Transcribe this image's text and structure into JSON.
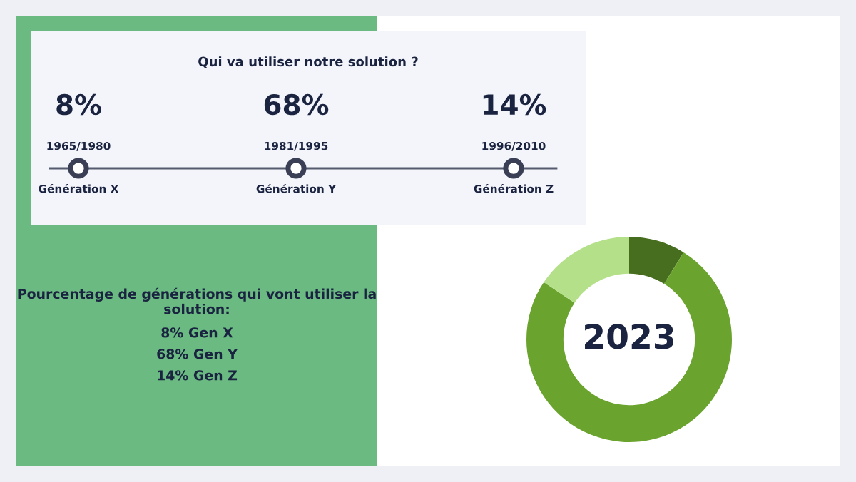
{
  "chart_data": [
    {
      "type": "other",
      "title": "Qui va utiliser notre solution ?",
      "categories": [
        "Génération X",
        "Génération Y",
        "Génération Z"
      ],
      "value_labels": [
        "8%",
        "68%",
        "14%"
      ],
      "annotations": [
        {
          "text": "1965/1980",
          "x": "Génération X"
        },
        {
          "text": "1981/1995",
          "x": "Génération Y"
        },
        {
          "text": "1996/2010",
          "x": "Génération Z"
        },
        "Pourcentage de générations qui vont utiliser la solution:",
        "8% Gen X",
        "68% Gen Y",
        "14% Gen Z"
      ]
    },
    {
      "type": "donut",
      "categories": [
        null,
        null,
        null
      ],
      "values": [
        8.9,
        75.5,
        15.6
      ],
      "colors": [
        "#466e1e",
        "#6aa42e",
        "#b5e08a"
      ],
      "annotations": [
        "2023"
      ]
    }
  ]
}
